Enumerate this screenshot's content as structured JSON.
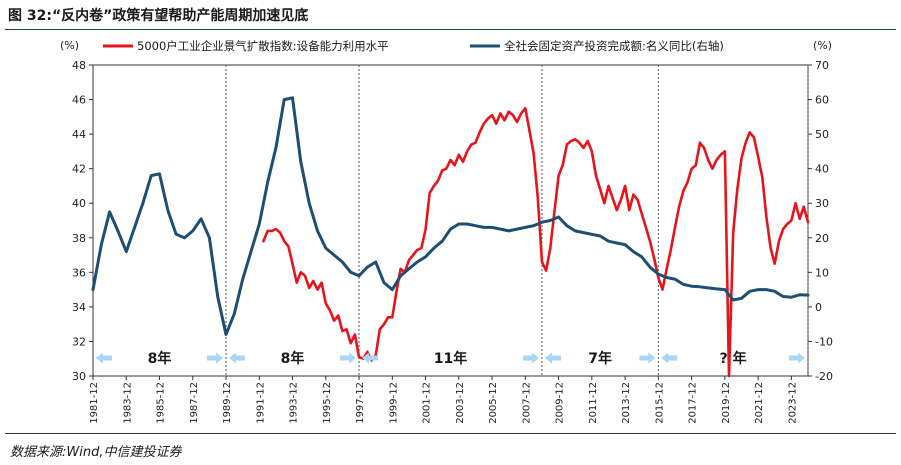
{
  "figure": {
    "title": "图 32:“反内卷”政策有望帮助产能周期加速见底",
    "source": "数据来源:Wind,中信建投证券"
  },
  "colors": {
    "capacity_series": "#e8141b",
    "investment_series": "#1d4f73",
    "arrow": "#a9d6f5",
    "rule": "#1f3a5f"
  },
  "chart_data": {
    "type": "line",
    "left_axis": {
      "unit": "(%)",
      "ylim": [
        30,
        48
      ],
      "ticks": [
        30,
        32,
        34,
        36,
        38,
        40,
        42,
        44,
        46,
        48
      ]
    },
    "right_axis": {
      "unit": "(%)",
      "ylim": [
        -20,
        70
      ],
      "ticks": [
        -20,
        -10,
        0,
        10,
        20,
        30,
        40,
        50,
        60,
        70
      ]
    },
    "x_axis": {
      "range": [
        "1981-12",
        "2024-12"
      ],
      "tick_labels": [
        "1981-12",
        "1983-12",
        "1985-12",
        "1987-12",
        "1989-12",
        "1991-12",
        "1993-12",
        "1995-12",
        "1997-12",
        "1999-12",
        "2001-12",
        "2003-12",
        "2005-12",
        "2007-12",
        "2009-12",
        "2011-12",
        "2013-12",
        "2015-12",
        "2017-12",
        "2019-12",
        "2021-12",
        "2023-12"
      ]
    },
    "grid": false,
    "legend_position": "top",
    "cycle_dividers": [
      "1989-12",
      "1997-12",
      "2008-12",
      "2015-12",
      "2024-12"
    ],
    "cycle_labels": [
      {
        "text": "8年",
        "from": "1981-12",
        "to": "1989-12"
      },
      {
        "text": "8年",
        "from": "1989-12",
        "to": "1997-12"
      },
      {
        "text": "11年",
        "from": "1997-12",
        "to": "2008-12"
      },
      {
        "text": "7年",
        "from": "2008-12",
        "to": "2015-12"
      },
      {
        "text": "? 年",
        "from": "2015-12",
        "to": "2024-12"
      }
    ],
    "series": [
      {
        "name": "5000户工业企业景气扩散指数:设备能力利用水平",
        "axis": "left",
        "points": [
          [
            "1992-03",
            37.8
          ],
          [
            "1992-06",
            38.4
          ],
          [
            "1992-09",
            38.4
          ],
          [
            "1992-12",
            38.5
          ],
          [
            "1993-03",
            38.3
          ],
          [
            "1993-06",
            37.8
          ],
          [
            "1993-09",
            37.5
          ],
          [
            "1993-12",
            36.5
          ],
          [
            "1994-03",
            35.4
          ],
          [
            "1994-06",
            36.0
          ],
          [
            "1994-09",
            35.8
          ],
          [
            "1994-12",
            35.1
          ],
          [
            "1995-03",
            35.5
          ],
          [
            "1995-06",
            35.0
          ],
          [
            "1995-09",
            35.4
          ],
          [
            "1995-12",
            34.2
          ],
          [
            "1996-03",
            33.8
          ],
          [
            "1996-06",
            33.2
          ],
          [
            "1996-09",
            33.5
          ],
          [
            "1996-12",
            32.6
          ],
          [
            "1997-03",
            32.7
          ],
          [
            "1997-06",
            31.9
          ],
          [
            "1997-09",
            32.4
          ],
          [
            "1997-12",
            31.1
          ],
          [
            "1998-03",
            31.0
          ],
          [
            "1998-06",
            31.4
          ],
          [
            "1998-09",
            30.9
          ],
          [
            "1998-12",
            31.2
          ],
          [
            "1999-03",
            32.7
          ],
          [
            "1999-06",
            33.0
          ],
          [
            "1999-09",
            33.4
          ],
          [
            "1999-12",
            33.4
          ],
          [
            "2000-03",
            34.9
          ],
          [
            "2000-06",
            36.2
          ],
          [
            "2000-09",
            36.0
          ],
          [
            "2000-12",
            36.7
          ],
          [
            "2001-03",
            37.0
          ],
          [
            "2001-06",
            37.3
          ],
          [
            "2001-09",
            37.4
          ],
          [
            "2001-12",
            38.5
          ],
          [
            "2002-03",
            40.6
          ],
          [
            "2002-06",
            41.0
          ],
          [
            "2002-09",
            41.3
          ],
          [
            "2002-12",
            41.9
          ],
          [
            "2003-03",
            42.0
          ],
          [
            "2003-06",
            42.5
          ],
          [
            "2003-09",
            42.2
          ],
          [
            "2003-12",
            42.8
          ],
          [
            "2004-03",
            42.4
          ],
          [
            "2004-06",
            43.0
          ],
          [
            "2004-09",
            43.4
          ],
          [
            "2004-12",
            43.5
          ],
          [
            "2005-03",
            44.1
          ],
          [
            "2005-06",
            44.6
          ],
          [
            "2005-09",
            44.9
          ],
          [
            "2005-12",
            45.1
          ],
          [
            "2006-03",
            44.6
          ],
          [
            "2006-06",
            45.2
          ],
          [
            "2006-09",
            44.8
          ],
          [
            "2006-12",
            45.3
          ],
          [
            "2007-03",
            45.1
          ],
          [
            "2007-06",
            44.7
          ],
          [
            "2007-09",
            45.2
          ],
          [
            "2007-12",
            45.5
          ],
          [
            "2008-03",
            44.2
          ],
          [
            "2008-06",
            42.9
          ],
          [
            "2008-09",
            40.3
          ],
          [
            "2008-12",
            36.6
          ],
          [
            "2009-03",
            36.1
          ],
          [
            "2009-06",
            37.4
          ],
          [
            "2009-09",
            39.5
          ],
          [
            "2009-12",
            41.6
          ],
          [
            "2010-03",
            42.2
          ],
          [
            "2010-06",
            43.4
          ],
          [
            "2010-09",
            43.6
          ],
          [
            "2010-12",
            43.7
          ],
          [
            "2011-03",
            43.5
          ],
          [
            "2011-06",
            43.2
          ],
          [
            "2011-09",
            43.6
          ],
          [
            "2011-12",
            43.0
          ],
          [
            "2012-03",
            41.6
          ],
          [
            "2012-06",
            40.8
          ],
          [
            "2012-09",
            40.0
          ],
          [
            "2012-12",
            41.0
          ],
          [
            "2013-03",
            40.3
          ],
          [
            "2013-06",
            39.6
          ],
          [
            "2013-09",
            40.2
          ],
          [
            "2013-12",
            41.0
          ],
          [
            "2014-03",
            39.6
          ],
          [
            "2014-06",
            40.5
          ],
          [
            "2014-09",
            40.2
          ],
          [
            "2014-12",
            39.4
          ],
          [
            "2015-03",
            38.6
          ],
          [
            "2015-06",
            37.8
          ],
          [
            "2015-09",
            36.8
          ],
          [
            "2015-12",
            35.7
          ],
          [
            "2016-03",
            35.0
          ],
          [
            "2016-06",
            36.2
          ],
          [
            "2016-09",
            37.3
          ],
          [
            "2016-12",
            38.6
          ],
          [
            "2017-03",
            39.8
          ],
          [
            "2017-06",
            40.7
          ],
          [
            "2017-09",
            41.2
          ],
          [
            "2017-12",
            42.0
          ],
          [
            "2018-03",
            42.2
          ],
          [
            "2018-06",
            43.5
          ],
          [
            "2018-09",
            43.2
          ],
          [
            "2018-12",
            42.5
          ],
          [
            "2019-03",
            42.0
          ],
          [
            "2019-06",
            42.5
          ],
          [
            "2019-09",
            42.8
          ],
          [
            "2019-12",
            43.0
          ],
          [
            "2020-03",
            30.0
          ],
          [
            "2020-06",
            38.3
          ],
          [
            "2020-09",
            40.8
          ],
          [
            "2020-12",
            42.6
          ],
          [
            "2021-03",
            43.5
          ],
          [
            "2021-06",
            44.1
          ],
          [
            "2021-09",
            43.8
          ],
          [
            "2021-12",
            42.7
          ],
          [
            "2022-03",
            41.5
          ],
          [
            "2022-06",
            39.2
          ],
          [
            "2022-09",
            37.4
          ],
          [
            "2022-12",
            36.5
          ],
          [
            "2023-03",
            37.8
          ],
          [
            "2023-06",
            38.5
          ],
          [
            "2023-09",
            38.8
          ],
          [
            "2023-12",
            39.0
          ],
          [
            "2024-03",
            40.0
          ],
          [
            "2024-06",
            39.1
          ],
          [
            "2024-09",
            39.8
          ],
          [
            "2024-12",
            38.9
          ]
        ]
      },
      {
        "name": "全社会固定资产投资完成额:名义同比(右轴)",
        "axis": "right",
        "points": [
          [
            "1981-12",
            5.0
          ],
          [
            "1982-06",
            18.0
          ],
          [
            "1982-12",
            27.5
          ],
          [
            "1983-06",
            22.0
          ],
          [
            "1983-12",
            16.0
          ],
          [
            "1984-06",
            23.0
          ],
          [
            "1984-12",
            30.0
          ],
          [
            "1985-06",
            38.0
          ],
          [
            "1985-12",
            38.5
          ],
          [
            "1986-06",
            28.0
          ],
          [
            "1986-12",
            21.0
          ],
          [
            "1987-06",
            20.0
          ],
          [
            "1987-12",
            22.0
          ],
          [
            "1988-06",
            25.5
          ],
          [
            "1988-12",
            20.0
          ],
          [
            "1989-06",
            3.0
          ],
          [
            "1989-12",
            -8.0
          ],
          [
            "1990-06",
            -2.0
          ],
          [
            "1990-12",
            8.0
          ],
          [
            "1991-06",
            16.0
          ],
          [
            "1991-12",
            24.0
          ],
          [
            "1992-06",
            36.0
          ],
          [
            "1992-12",
            46.0
          ],
          [
            "1993-06",
            60.0
          ],
          [
            "1993-12",
            60.5
          ],
          [
            "1994-06",
            42.0
          ],
          [
            "1994-12",
            30.0
          ],
          [
            "1995-06",
            22.0
          ],
          [
            "1995-12",
            17.0
          ],
          [
            "1996-06",
            15.0
          ],
          [
            "1996-12",
            13.0
          ],
          [
            "1997-06",
            10.0
          ],
          [
            "1997-12",
            9.0
          ],
          [
            "1998-06",
            11.5
          ],
          [
            "1998-12",
            13.0
          ],
          [
            "1999-06",
            7.0
          ],
          [
            "1999-12",
            5.0
          ],
          [
            "2000-06",
            9.0
          ],
          [
            "2000-12",
            11.0
          ],
          [
            "2001-06",
            13.0
          ],
          [
            "2001-12",
            14.5
          ],
          [
            "2002-06",
            17.0
          ],
          [
            "2002-12",
            19.0
          ],
          [
            "2003-06",
            22.5
          ],
          [
            "2003-12",
            24.0
          ],
          [
            "2004-06",
            24.0
          ],
          [
            "2004-12",
            23.5
          ],
          [
            "2005-06",
            23.0
          ],
          [
            "2005-12",
            23.0
          ],
          [
            "2006-06",
            22.5
          ],
          [
            "2006-12",
            22.0
          ],
          [
            "2007-06",
            22.5
          ],
          [
            "2007-12",
            23.0
          ],
          [
            "2008-06",
            23.5
          ],
          [
            "2008-12",
            24.5
          ],
          [
            "2009-06",
            25.0
          ],
          [
            "2009-12",
            26.0
          ],
          [
            "2010-06",
            23.5
          ],
          [
            "2010-12",
            22.0
          ],
          [
            "2011-06",
            21.5
          ],
          [
            "2011-12",
            21.0
          ],
          [
            "2012-06",
            20.5
          ],
          [
            "2012-12",
            19.0
          ],
          [
            "2013-06",
            18.5
          ],
          [
            "2013-12",
            18.0
          ],
          [
            "2014-06",
            16.0
          ],
          [
            "2014-12",
            14.5
          ],
          [
            "2015-06",
            11.5
          ],
          [
            "2015-12",
            9.5
          ],
          [
            "2016-06",
            8.5
          ],
          [
            "2016-12",
            8.0
          ],
          [
            "2017-06",
            6.5
          ],
          [
            "2017-12",
            6.0
          ],
          [
            "2018-06",
            5.8
          ],
          [
            "2018-12",
            5.5
          ],
          [
            "2019-06",
            5.2
          ],
          [
            "2019-12",
            5.0
          ],
          [
            "2020-06",
            2.0
          ],
          [
            "2020-12",
            2.5
          ],
          [
            "2021-06",
            4.5
          ],
          [
            "2021-12",
            5.0
          ],
          [
            "2022-06",
            5.0
          ],
          [
            "2022-12",
            4.5
          ],
          [
            "2023-06",
            3.0
          ],
          [
            "2023-12",
            2.8
          ],
          [
            "2024-06",
            3.5
          ],
          [
            "2024-12",
            3.4
          ]
        ]
      }
    ]
  }
}
